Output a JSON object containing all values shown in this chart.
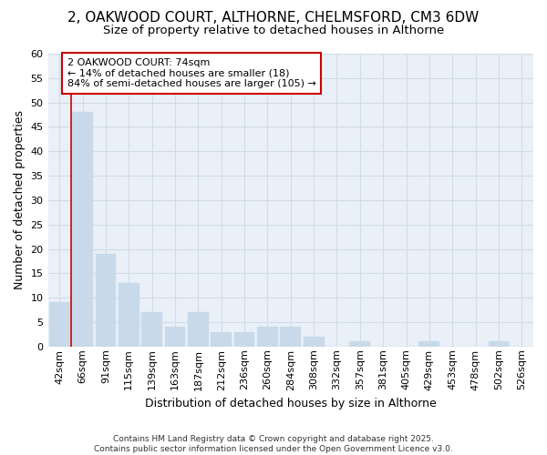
{
  "title_line1": "2, OAKWOOD COURT, ALTHORNE, CHELMSFORD, CM3 6DW",
  "title_line2": "Size of property relative to detached houses in Althorne",
  "xlabel": "Distribution of detached houses by size in Althorne",
  "ylabel": "Number of detached properties",
  "categories": [
    "42sqm",
    "66sqm",
    "91sqm",
    "115sqm",
    "139sqm",
    "163sqm",
    "187sqm",
    "212sqm",
    "236sqm",
    "260sqm",
    "284sqm",
    "308sqm",
    "332sqm",
    "357sqm",
    "381sqm",
    "405sqm",
    "429sqm",
    "453sqm",
    "478sqm",
    "502sqm",
    "526sqm"
  ],
  "values": [
    9,
    48,
    19,
    13,
    7,
    4,
    7,
    3,
    3,
    4,
    4,
    2,
    0,
    1,
    0,
    0,
    1,
    0,
    0,
    1,
    0
  ],
  "bar_color": "#c8daea",
  "bar_edge_color": "#c8daea",
  "grid_color": "#d0dce8",
  "background_color": "#eaf0f8",
  "vline_x": 0.5,
  "vline_color": "#cc0000",
  "annotation_text": "2 OAKWOOD COURT: 74sqm\n← 14% of detached houses are smaller (18)\n84% of semi-detached houses are larger (105) →",
  "annotation_box_color": "#ffffff",
  "annotation_border_color": "#cc0000",
  "ylim": [
    0,
    60
  ],
  "yticks": [
    0,
    5,
    10,
    15,
    20,
    25,
    30,
    35,
    40,
    45,
    50,
    55,
    60
  ],
  "footnote": "Contains HM Land Registry data © Crown copyright and database right 2025.\nContains public sector information licensed under the Open Government Licence v3.0.",
  "title_fontsize": 11,
  "subtitle_fontsize": 9.5,
  "tick_fontsize": 8,
  "ylabel_fontsize": 9,
  "xlabel_fontsize": 9
}
